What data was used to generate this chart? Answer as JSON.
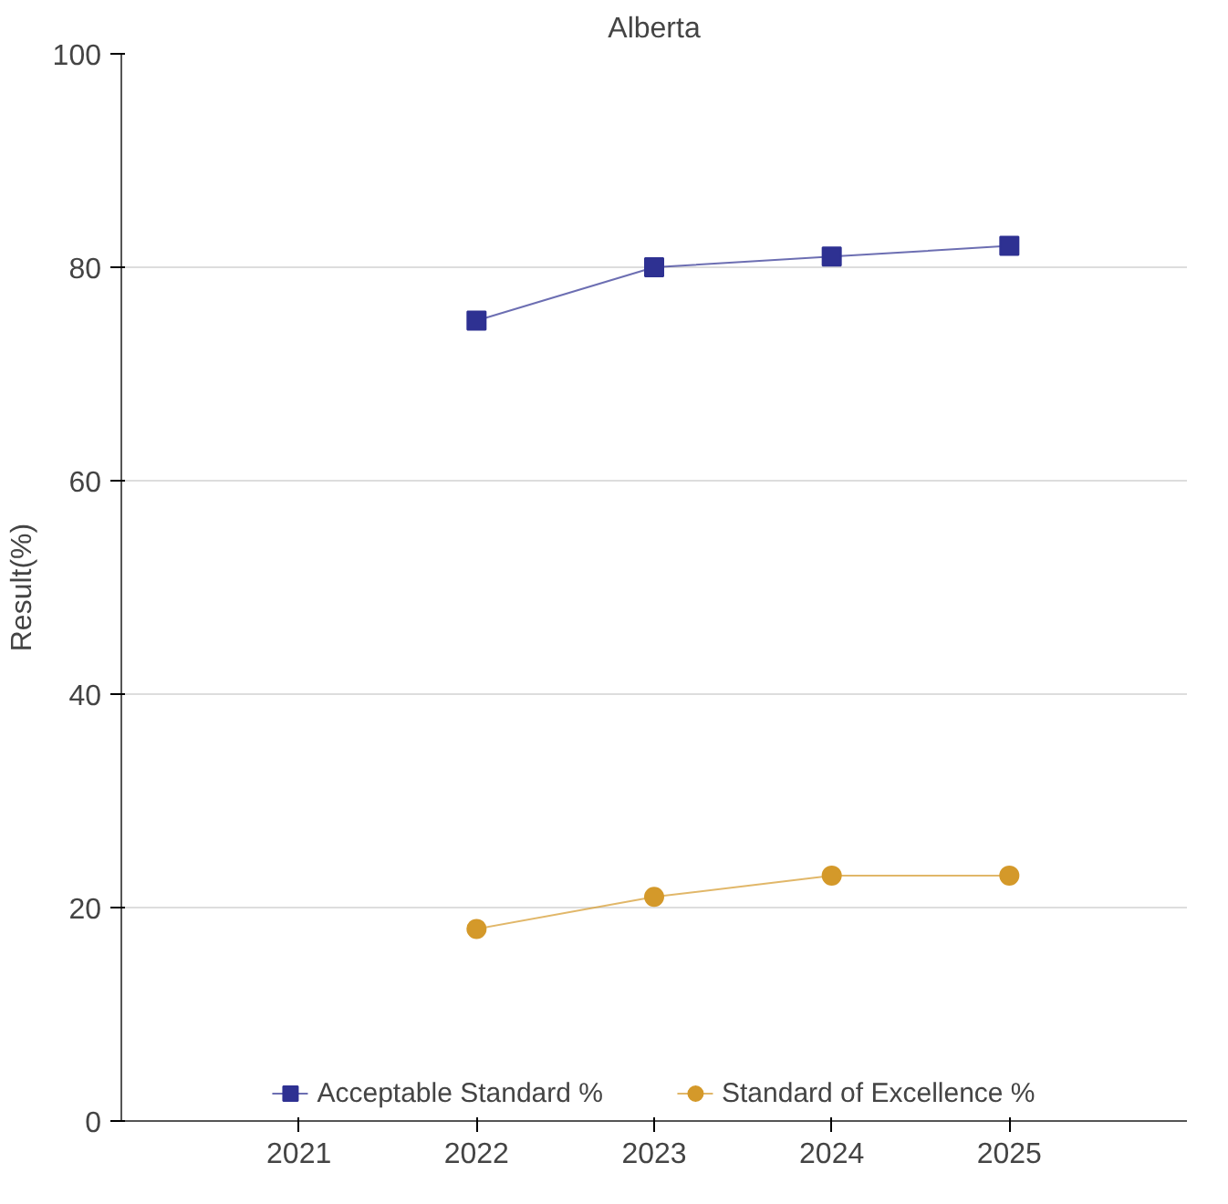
{
  "chart_data": {
    "type": "line",
    "title": "Alberta",
    "ylabel": "Result(%)",
    "x": [
      2022,
      2023,
      2024,
      2025
    ],
    "xlim": [
      2020,
      2026
    ],
    "xticks": [
      2021,
      2022,
      2023,
      2024,
      2025
    ],
    "ylim": [
      0,
      100
    ],
    "yticks": [
      0,
      20,
      40,
      60,
      80,
      100
    ],
    "grid": "y",
    "legend": "bottom",
    "series": [
      {
        "name": "Acceptable Standard %",
        "color": "#2e3192",
        "marker": "square",
        "values": [
          75,
          80,
          81,
          82
        ]
      },
      {
        "name": "Standard of Excellence %",
        "color": "#d4992a",
        "marker": "circle",
        "values": [
          18,
          21,
          23,
          23
        ]
      }
    ]
  }
}
